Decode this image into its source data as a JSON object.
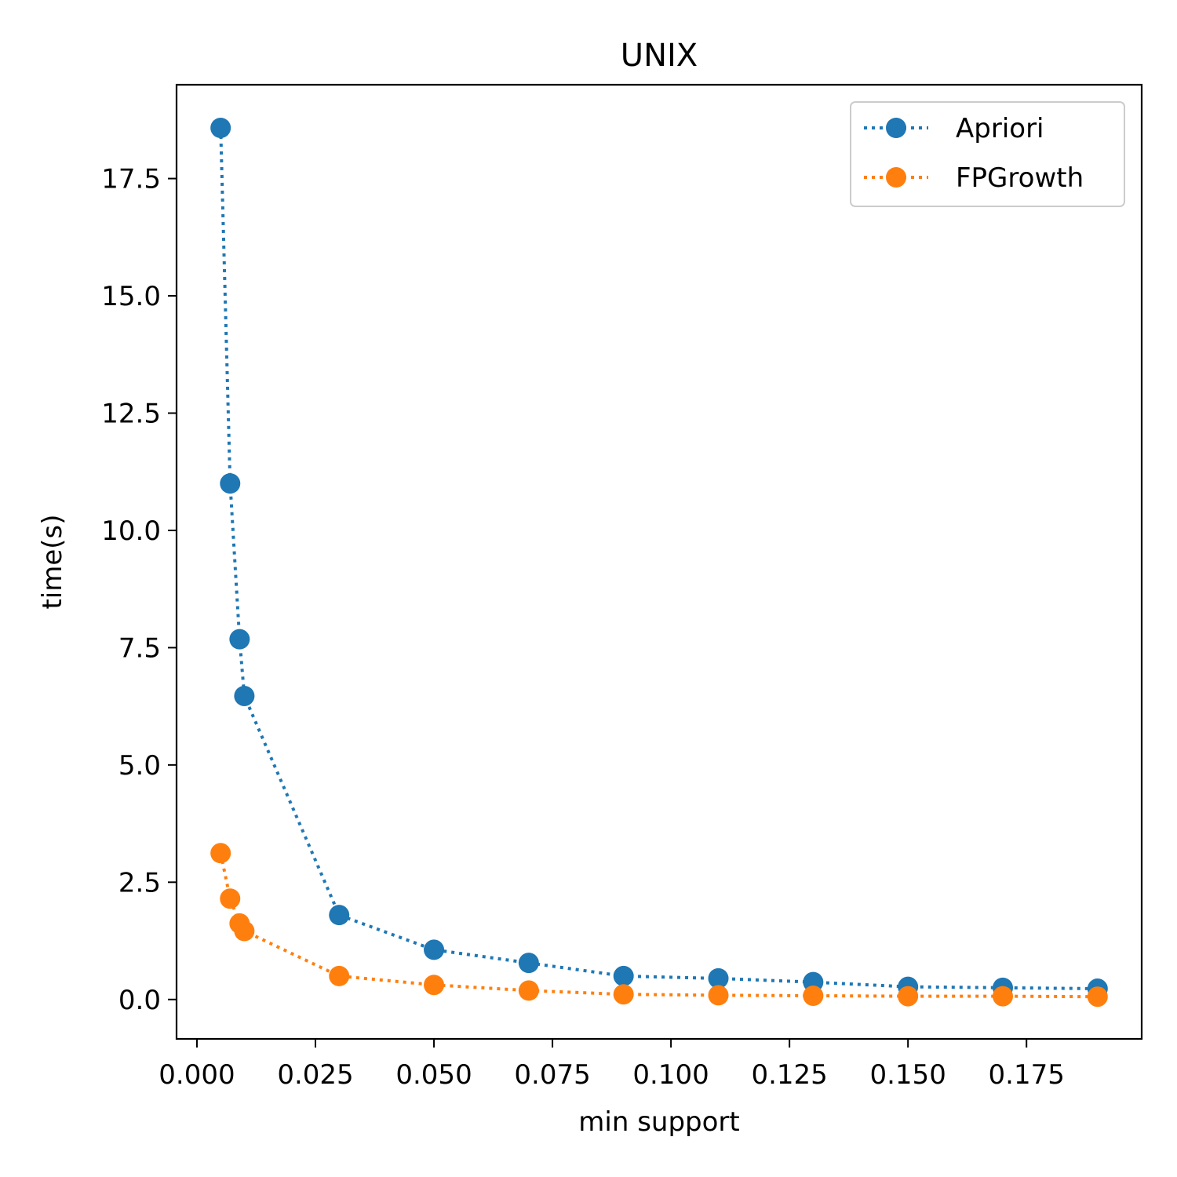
{
  "chart_data": {
    "type": "line",
    "title": "UNIX",
    "xlabel": "min support",
    "ylabel": "time(s)",
    "xlim": [
      -0.0043,
      0.1993
    ],
    "ylim": [
      -0.84,
      19.5
    ],
    "xticks": [
      0.0,
      0.025,
      0.05,
      0.075,
      0.1,
      0.125,
      0.15,
      0.175
    ],
    "xtick_labels": [
      "0.000",
      "0.025",
      "0.050",
      "0.075",
      "0.100",
      "0.125",
      "0.150",
      "0.175"
    ],
    "yticks": [
      0.0,
      2.5,
      5.0,
      7.5,
      10.0,
      12.5,
      15.0,
      17.5
    ],
    "ytick_labels": [
      "0.0",
      "2.5",
      "5.0",
      "7.5",
      "10.0",
      "12.5",
      "15.0",
      "17.5"
    ],
    "grid": false,
    "legend_position": "top-right",
    "series": [
      {
        "name": "Apriori",
        "color": "#1f77b4",
        "linestyle": "dotted",
        "marker": "circle",
        "x": [
          0.005,
          0.007,
          0.009,
          0.01,
          0.03,
          0.05,
          0.07,
          0.09,
          0.11,
          0.13,
          0.15,
          0.17,
          0.19
        ],
        "y": [
          18.58,
          11.0,
          7.68,
          6.47,
          1.8,
          1.06,
          0.78,
          0.5,
          0.45,
          0.37,
          0.27,
          0.25,
          0.23
        ]
      },
      {
        "name": "FPGrowth",
        "color": "#ff7f0e",
        "linestyle": "dotted",
        "marker": "circle",
        "x": [
          0.005,
          0.007,
          0.009,
          0.01,
          0.03,
          0.05,
          0.07,
          0.09,
          0.11,
          0.13,
          0.15,
          0.17,
          0.19
        ],
        "y": [
          3.12,
          2.15,
          1.62,
          1.46,
          0.5,
          0.31,
          0.19,
          0.11,
          0.09,
          0.08,
          0.07,
          0.07,
          0.06
        ]
      }
    ]
  }
}
